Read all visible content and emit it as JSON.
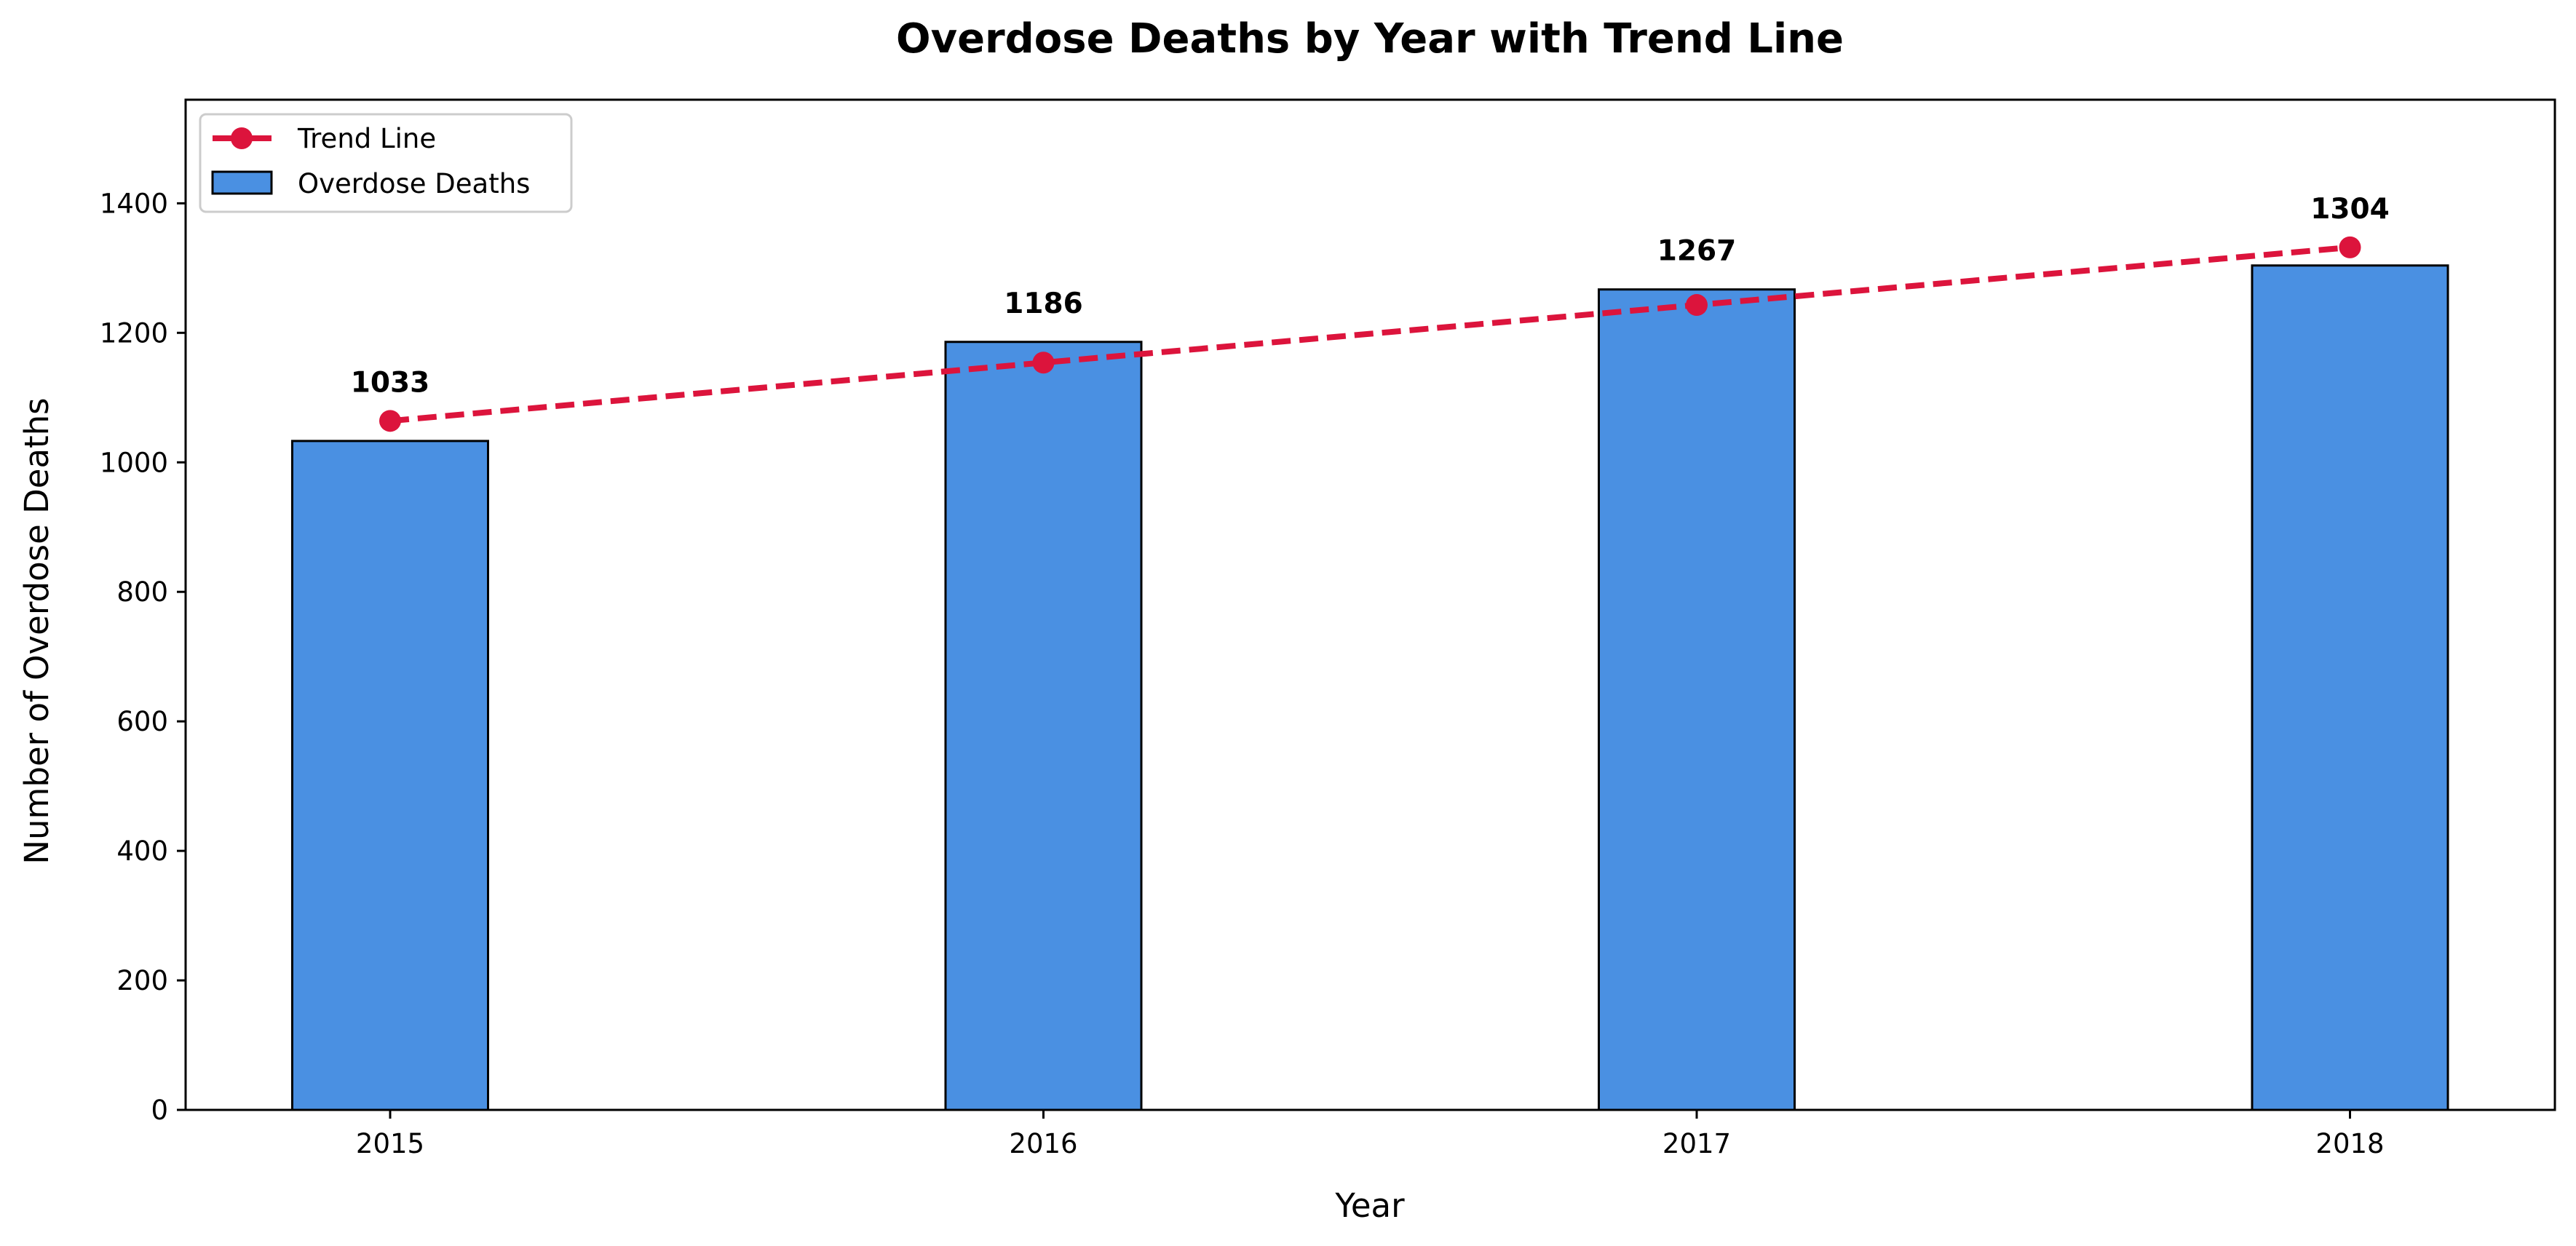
{
  "chart_data": {
    "type": "bar",
    "title": "Overdose Deaths by Year with Trend Line",
    "xlabel": "Year",
    "ylabel": "Number of Overdose Deaths",
    "categories": [
      "2015",
      "2016",
      "2017",
      "2018"
    ],
    "series": [
      {
        "name": "Overdose Deaths",
        "type": "bar",
        "values": [
          1033,
          1186,
          1267,
          1304
        ],
        "labels": [
          "1033",
          "1186",
          "1267",
          "1304"
        ],
        "color": "#4A90E2"
      },
      {
        "name": "Trend Line",
        "type": "line",
        "style": "dashed",
        "marker": "circle",
        "values": [
          1064,
          1154,
          1243,
          1332
        ],
        "color": "#DC143C"
      }
    ],
    "ylim": [
      0,
      1560
    ],
    "yticks": [
      0,
      200,
      400,
      600,
      800,
      1000,
      1200,
      1400
    ],
    "grid": false,
    "legend_position": "top-left"
  }
}
